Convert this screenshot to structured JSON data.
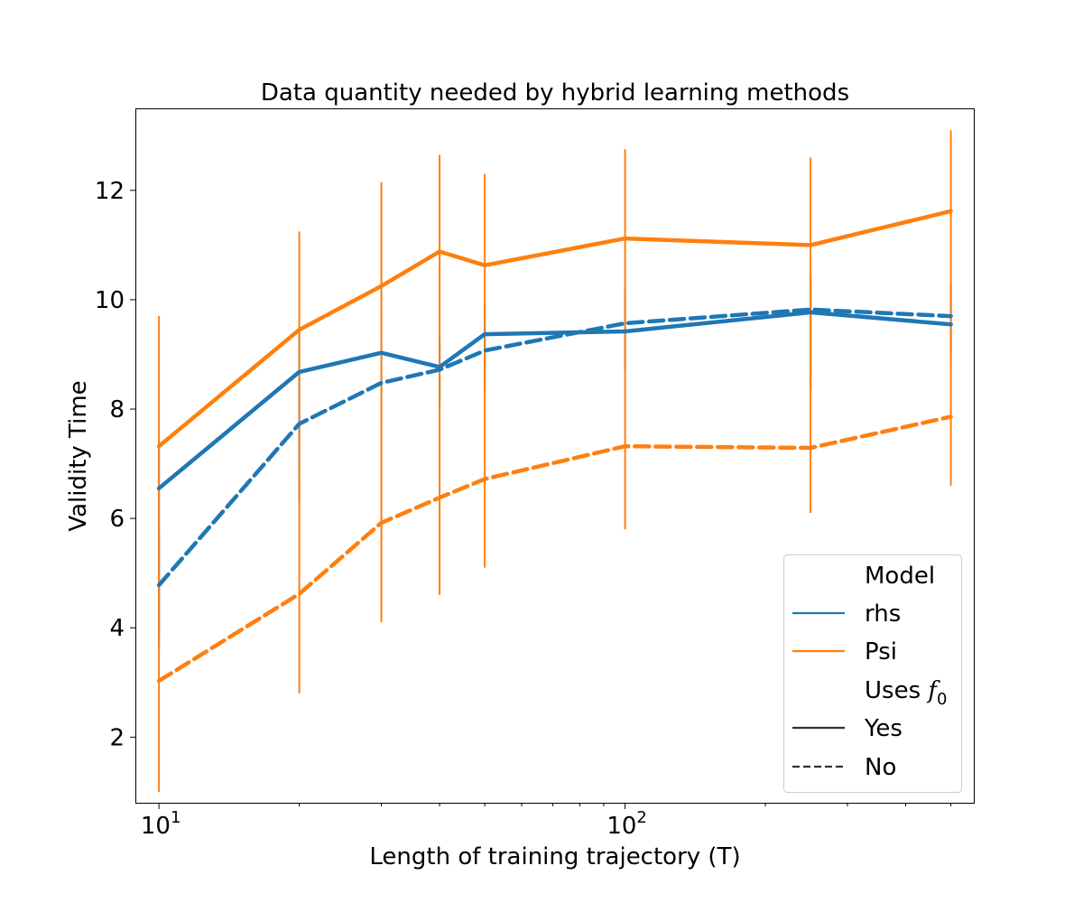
{
  "chart_data": {
    "type": "line",
    "title": "Data quantity needed by hybrid learning methods",
    "xlabel": "Length of training trajectory (T)",
    "ylabel": "Validity Time",
    "xscale": "log",
    "xlim": [
      8.9,
      560
    ],
    "ylim": [
      0.8,
      13.5
    ],
    "x_major_ticks": [
      {
        "value": 10,
        "base": "10",
        "exp": "1"
      },
      {
        "value": 100,
        "base": "10",
        "exp": "2"
      }
    ],
    "x_minor_ticks": [
      20,
      30,
      40,
      50,
      60,
      70,
      80,
      90,
      200,
      300,
      400,
      500
    ],
    "y_ticks": [
      2,
      4,
      6,
      8,
      10,
      12
    ],
    "x": [
      10,
      20,
      30,
      40,
      50,
      100,
      250,
      500
    ],
    "series": [
      {
        "name": "rhs",
        "uses_f0": "Yes",
        "color": "#1f77b4",
        "dashed": false,
        "values": [
          6.55,
          8.68,
          9.03,
          8.77,
          9.37,
          9.42,
          9.77,
          9.55
        ],
        "err_low": [
          3.8,
          6.9,
          8.3,
          8.1,
          8.7,
          8.7,
          8.6,
          8.8
        ],
        "err_high": [
          7.4,
          9.5,
          9.7,
          9.2,
          9.9,
          10.0,
          10.3,
          10.3
        ]
      },
      {
        "name": "rhs",
        "uses_f0": "No",
        "color": "#1f77b4",
        "dashed": true,
        "values": [
          4.78,
          7.73,
          8.48,
          8.72,
          9.07,
          9.57,
          9.82,
          9.7
        ],
        "err_low": [
          3.6,
          6.3,
          7.7,
          8.0,
          8.4,
          8.9,
          8.4,
          9.0
        ],
        "err_high": [
          5.8,
          8.7,
          9.2,
          9.4,
          9.6,
          10.2,
          10.4,
          10.3
        ]
      },
      {
        "name": "Psi",
        "uses_f0": "Yes",
        "color": "#ff7f0e",
        "dashed": false,
        "values": [
          7.32,
          9.45,
          10.25,
          10.88,
          10.63,
          11.12,
          11.0,
          11.62
        ],
        "err_low": [
          4.5,
          6.4,
          7.7,
          8.1,
          8.3,
          8.8,
          8.4,
          9.1
        ],
        "err_high": [
          9.7,
          11.25,
          12.15,
          12.65,
          12.3,
          12.75,
          12.6,
          13.1
        ]
      },
      {
        "name": "Psi",
        "uses_f0": "No",
        "color": "#ff7f0e",
        "dashed": true,
        "values": [
          3.03,
          4.62,
          5.92,
          6.38,
          6.72,
          7.32,
          7.29,
          7.86
        ],
        "err_low": [
          1.0,
          2.8,
          4.1,
          4.6,
          5.1,
          5.8,
          6.1,
          6.6
        ],
        "err_high": [
          5.0,
          6.5,
          7.7,
          8.1,
          8.4,
          8.9,
          8.5,
          9.2
        ]
      }
    ],
    "legend": {
      "placement": "lower-right",
      "header_model": "Model",
      "model_entries": [
        {
          "label": "rhs",
          "color": "#1f77b4"
        },
        {
          "label": "Psi",
          "color": "#ff7f0e"
        }
      ],
      "header_style_text": "Uses ",
      "header_style_math": "f",
      "header_style_sub": "0",
      "style_entries": [
        {
          "label": "Yes",
          "dashed": false
        },
        {
          "label": "No",
          "dashed": true
        }
      ]
    }
  }
}
